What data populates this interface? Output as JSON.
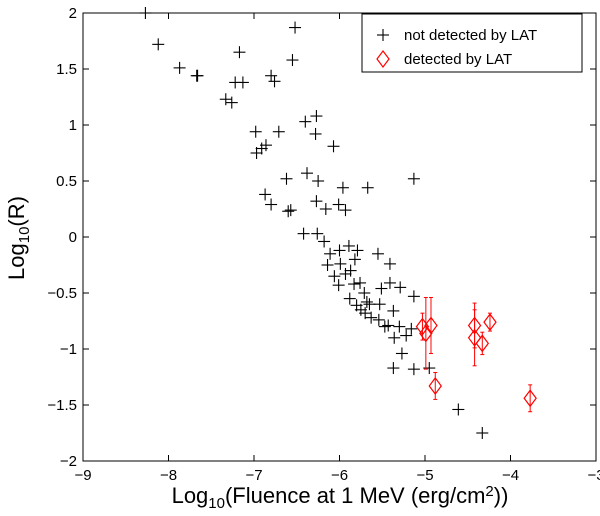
{
  "chart_data": {
    "type": "scatter",
    "title": "",
    "xlabel": {
      "prefix": "Log",
      "sub": "10",
      "main": "(Fluence at 1 MeV (erg/cm",
      "sup": "2",
      "suffix": "))"
    },
    "ylabel": {
      "prefix": "Log",
      "sub": "10",
      "main": "(R)"
    },
    "xlim": [
      -9,
      -3
    ],
    "ylim": [
      -2,
      2
    ],
    "xticks": [
      -9,
      -8,
      -7,
      -6,
      -5,
      -4,
      -3
    ],
    "xtick_labels": [
      "−9",
      "−8",
      "−7",
      "−6",
      "−5",
      "−4",
      "−3"
    ],
    "yticks": [
      -2,
      -1.5,
      -1,
      -0.5,
      0,
      0.5,
      1,
      1.5,
      2
    ],
    "ytick_labels": [
      "−2",
      "−1.5",
      "−1",
      "−0.5",
      "0",
      "0.5",
      "1",
      "1.5",
      "2"
    ],
    "legend_position": "top-right",
    "series": [
      {
        "name": "not detected by LAT",
        "marker": "plus",
        "color": "#000000",
        "points": [
          [
            -8.27,
            2.0
          ],
          [
            -8.12,
            1.72
          ],
          [
            -7.87,
            1.51
          ],
          [
            -7.67,
            1.44
          ],
          [
            -7.66,
            1.44
          ],
          [
            -7.17,
            1.65
          ],
          [
            -7.22,
            1.38
          ],
          [
            -7.13,
            1.38
          ],
          [
            -6.8,
            1.44
          ],
          [
            -6.76,
            1.39
          ],
          [
            -6.52,
            1.87
          ],
          [
            -6.55,
            1.58
          ],
          [
            -7.33,
            1.23
          ],
          [
            -7.26,
            1.2
          ],
          [
            -6.98,
            0.94
          ],
          [
            -6.91,
            0.79
          ],
          [
            -6.97,
            0.75
          ],
          [
            -6.86,
            0.82
          ],
          [
            -6.71,
            0.94
          ],
          [
            -6.4,
            1.03
          ],
          [
            -6.27,
            1.08
          ],
          [
            -6.28,
            0.92
          ],
          [
            -6.07,
            0.81
          ],
          [
            -6.87,
            0.38
          ],
          [
            -6.8,
            0.29
          ],
          [
            -6.62,
            0.52
          ],
          [
            -6.6,
            0.23
          ],
          [
            -6.57,
            0.24
          ],
          [
            -6.38,
            0.57
          ],
          [
            -6.25,
            0.5
          ],
          [
            -5.96,
            0.44
          ],
          [
            -5.67,
            0.44
          ],
          [
            -5.13,
            0.52
          ],
          [
            -6.27,
            0.32
          ],
          [
            -6.16,
            0.25
          ],
          [
            -6.01,
            0.29
          ],
          [
            -5.93,
            0.24
          ],
          [
            -6.42,
            0.03
          ],
          [
            -6.26,
            0.03
          ],
          [
            -6.18,
            -0.04
          ],
          [
            -6.11,
            -0.15
          ],
          [
            -6.0,
            -0.12
          ],
          [
            -5.89,
            -0.08
          ],
          [
            -5.99,
            -0.24
          ],
          [
            -5.87,
            -0.3
          ],
          [
            -5.82,
            -0.2
          ],
          [
            -5.79,
            -0.12
          ],
          [
            -6.14,
            -0.25
          ],
          [
            -6.06,
            -0.35
          ],
          [
            -6.01,
            -0.43
          ],
          [
            -5.93,
            -0.33
          ],
          [
            -5.83,
            -0.42
          ],
          [
            -5.76,
            -0.41
          ],
          [
            -5.71,
            -0.5
          ],
          [
            -5.68,
            -0.58
          ],
          [
            -5.65,
            -0.6
          ],
          [
            -5.63,
            -0.72
          ],
          [
            -5.7,
            -0.68
          ],
          [
            -5.75,
            -0.65
          ],
          [
            -5.8,
            -0.61
          ],
          [
            -5.88,
            -0.55
          ],
          [
            -5.54,
            -0.74
          ],
          [
            -5.53,
            -0.6
          ],
          [
            -5.51,
            -0.46
          ],
          [
            -5.41,
            -0.41
          ],
          [
            -5.37,
            -0.66
          ],
          [
            -5.36,
            -0.9
          ],
          [
            -5.43,
            -0.79
          ],
          [
            -5.47,
            -0.8
          ],
          [
            -5.3,
            -0.8
          ],
          [
            -5.22,
            -0.88
          ],
          [
            -5.16,
            -0.82
          ],
          [
            -5.13,
            -0.53
          ],
          [
            -5.29,
            -0.45
          ],
          [
            -5.41,
            -0.24
          ],
          [
            -5.55,
            -0.15
          ],
          [
            -5.13,
            -1.18
          ],
          [
            -5.37,
            -1.17
          ],
          [
            -5.27,
            -1.04
          ],
          [
            -4.95,
            -1.17
          ],
          [
            -4.61,
            -1.54
          ],
          [
            -4.33,
            -1.75
          ]
        ]
      },
      {
        "name": "detected by LAT",
        "marker": "diamond",
        "color": "#ff0000",
        "points": [
          [
            -5.03,
            -0.8,
            0.12
          ],
          [
            -4.99,
            -0.86,
            0.32
          ],
          [
            -4.93,
            -0.79,
            0.25
          ],
          [
            -4.88,
            -1.33,
            0.12
          ],
          [
            -4.42,
            -0.79,
            0.2
          ],
          [
            -4.42,
            -0.9,
            0.25
          ],
          [
            -4.33,
            -0.95,
            0.1
          ],
          [
            -4.24,
            -0.76,
            0.08
          ],
          [
            -3.77,
            -1.44,
            0.12
          ]
        ]
      }
    ]
  }
}
